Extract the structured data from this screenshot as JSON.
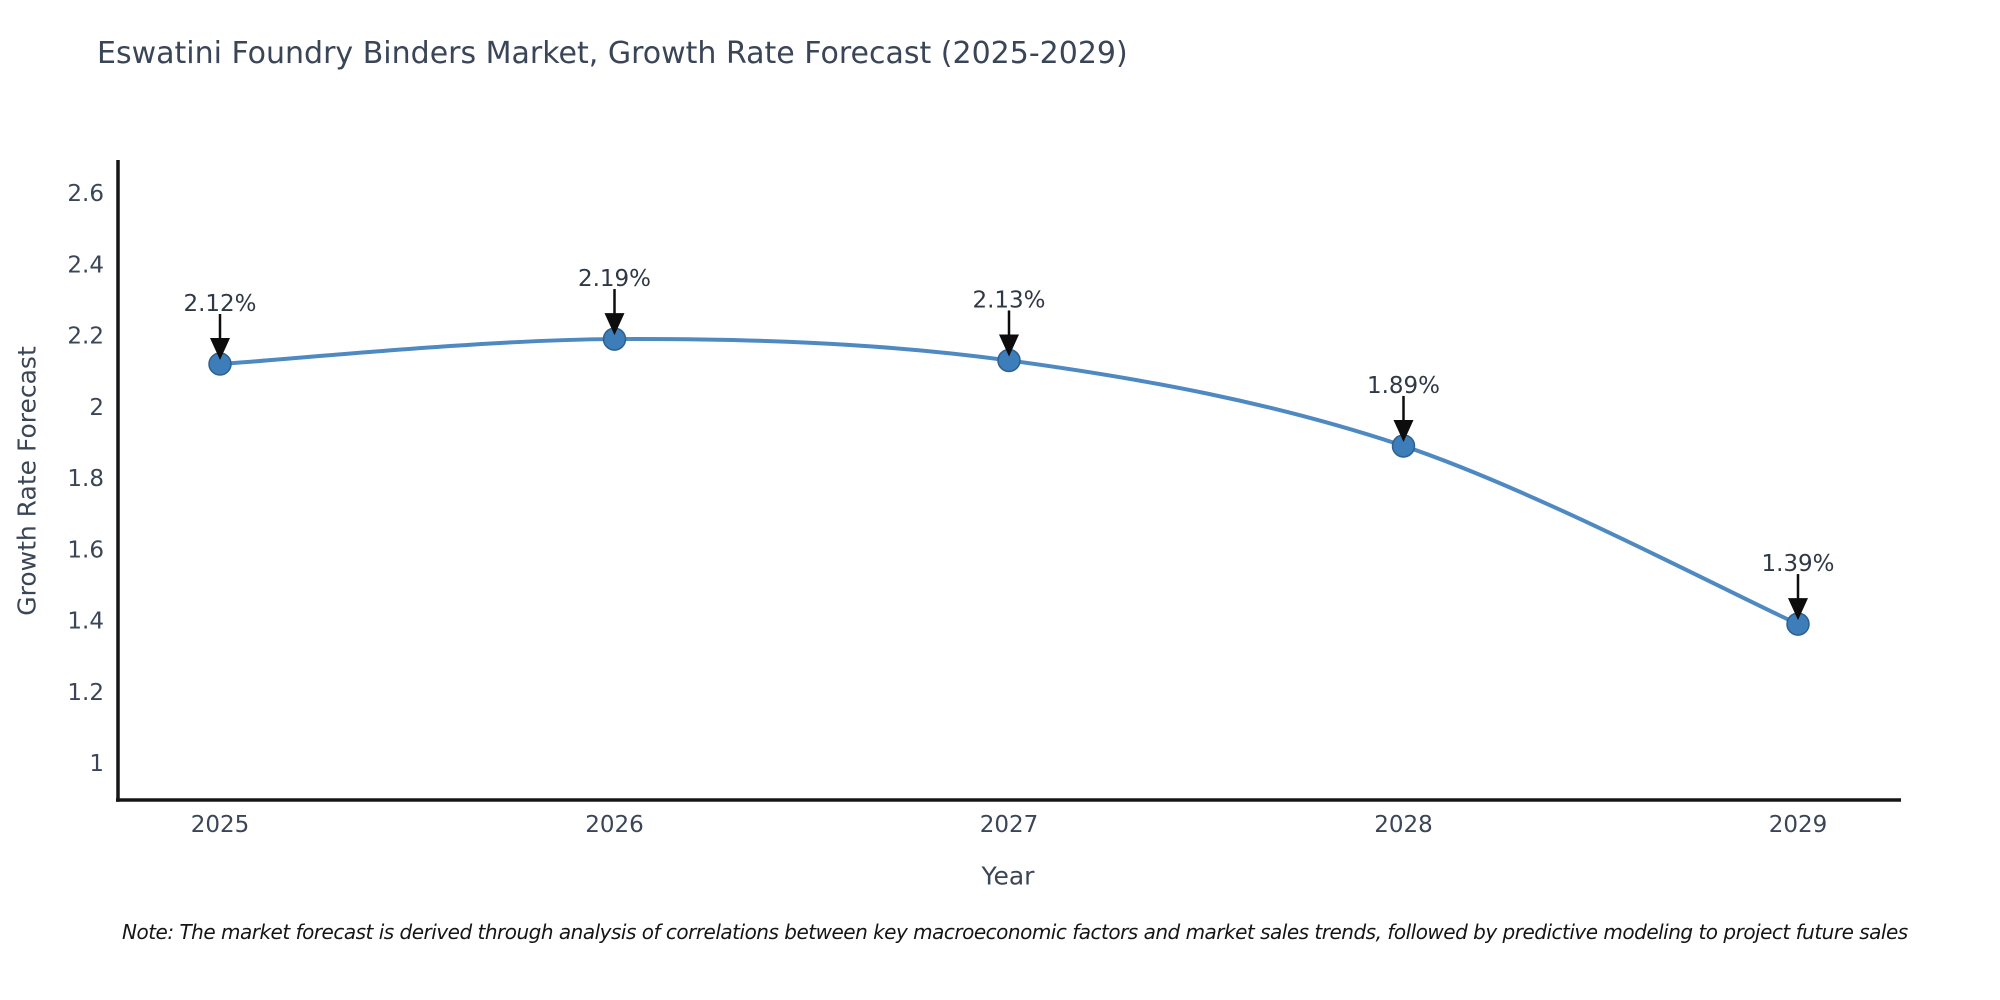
{
  "chart_data": {
    "type": "line",
    "title": "Eswatini Foundry Binders Market, Growth Rate Forecast (2025-2029)",
    "xlabel": "Year",
    "ylabel": "Growth Rate Forecast",
    "categories": [
      "2025",
      "2026",
      "2027",
      "2028",
      "2029"
    ],
    "values": [
      2.12,
      2.19,
      2.13,
      1.89,
      1.39
    ],
    "point_labels": [
      "2.12%",
      "2.19%",
      "2.13%",
      "1.89%",
      "1.39%"
    ],
    "yticks": [
      1,
      1.2,
      1.4,
      1.6,
      1.8,
      2,
      2.2,
      2.4,
      2.6
    ],
    "ylim": [
      0.9,
      2.69
    ],
    "grid": false,
    "legend": "none",
    "colors": {
      "line": "#4e89c2",
      "marker_fill": "#3d7db9",
      "marker_edge": "#2d618f",
      "axis": "#161616",
      "arrow": "#0d0d0d",
      "text": "#3a4557",
      "point_label_text": "#2f3845"
    }
  },
  "note": {
    "text": "Note: The market forecast is derived through analysis of correlations between key macroeconomic factors and market sales trends, followed by predictive modeling to project future sales"
  }
}
